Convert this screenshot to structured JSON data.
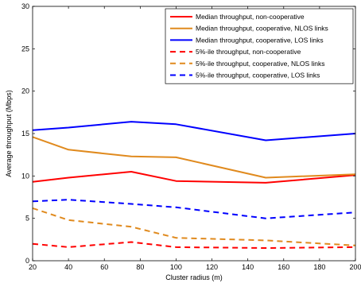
{
  "chart_data": {
    "type": "line",
    "xlabel": "Cluster radius (m)",
    "ylabel": "Average throughput (Mbps)",
    "xlim": [
      20,
      200
    ],
    "ylim": [
      0,
      30
    ],
    "xticks": [
      "20",
      "40",
      "60",
      "80",
      "100",
      "120",
      "140",
      "160",
      "180",
      "200"
    ],
    "yticks": [
      "0",
      "5",
      "10",
      "15",
      "20",
      "25",
      "30"
    ],
    "grid": false,
    "legend_position": "top-right",
    "series": [
      {
        "name": "Median throughput, non-cooperative",
        "color": "#ff0000",
        "dash": "solid",
        "x": [
          20,
          40,
          75,
          100,
          150,
          200
        ],
        "y": [
          9.3,
          9.8,
          10.5,
          9.4,
          9.2,
          10.1
        ]
      },
      {
        "name": "Median throughput, cooperative, NLOS links",
        "color": "#e08a1e",
        "dash": "solid",
        "x": [
          20,
          40,
          75,
          100,
          150,
          200
        ],
        "y": [
          14.6,
          13.1,
          12.3,
          12.2,
          9.8,
          10.2
        ]
      },
      {
        "name": "Median throughput, cooperative, LOS links",
        "color": "#0000ff",
        "dash": "solid",
        "x": [
          20,
          40,
          75,
          100,
          150,
          200
        ],
        "y": [
          15.4,
          15.7,
          16.4,
          16.1,
          14.2,
          15.0
        ]
      },
      {
        "name": "5%-ile throughput, non-cooperative",
        "color": "#ff0000",
        "dash": "dashed",
        "x": [
          20,
          40,
          75,
          100,
          150,
          200
        ],
        "y": [
          2.0,
          1.6,
          2.2,
          1.6,
          1.5,
          1.6
        ]
      },
      {
        "name": "5%-ile throughput, cooperative, NLOS links",
        "color": "#e08a1e",
        "dash": "dashed",
        "x": [
          20,
          40,
          75,
          100,
          150,
          200
        ],
        "y": [
          6.2,
          4.8,
          4.0,
          2.7,
          2.4,
          1.8
        ]
      },
      {
        "name": "5%-ile throughput, cooperative, LOS links",
        "color": "#0000ff",
        "dash": "dashed",
        "x": [
          20,
          40,
          75,
          100,
          150,
          200
        ],
        "y": [
          7.0,
          7.2,
          6.7,
          6.3,
          5.0,
          5.7
        ]
      }
    ]
  }
}
